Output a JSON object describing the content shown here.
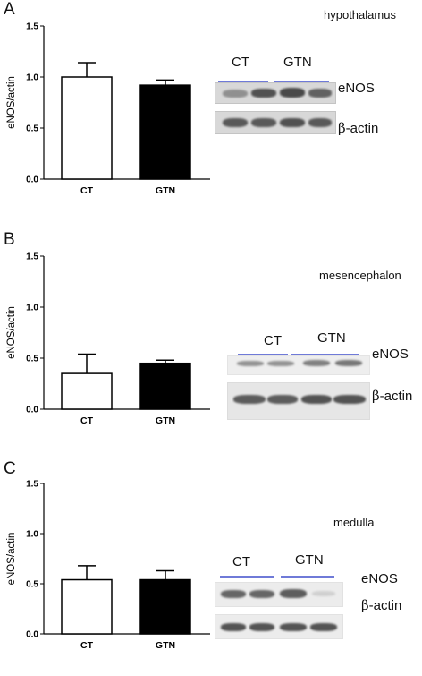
{
  "panels": [
    {
      "letter": "A",
      "region": "hypothalamus",
      "blot": {
        "groups": [
          "CT",
          "GTN"
        ],
        "proteins": {
          "enos": "eNOS",
          "actin_prefix": "β",
          "actin_suffix": "-actin"
        }
      }
    },
    {
      "letter": "B",
      "region": "mesencephalon",
      "blot": {
        "groups": [
          "CT",
          "GTN"
        ],
        "proteins": {
          "enos": "eNOS",
          "actin_prefix": "β",
          "actin_suffix": "-actin"
        }
      }
    },
    {
      "letter": "C",
      "region": "medulla",
      "blot": {
        "groups": [
          "CT",
          "GTN"
        ],
        "proteins": {
          "enos": "eNOS",
          "actin_prefix": "β",
          "actin_suffix": "-actin"
        }
      }
    }
  ],
  "chart_data": [
    {
      "type": "bar",
      "categories": [
        "CT",
        "GTN"
      ],
      "values": [
        1.0,
        0.92
      ],
      "errors": [
        0.14,
        0.05
      ],
      "colors": [
        "#ffffff",
        "#000000"
      ],
      "ylabel": "eNOS/actin",
      "ylim": [
        0,
        1.5
      ],
      "yticks": [
        "0.0",
        "0.5",
        "1.0",
        "1.5"
      ]
    },
    {
      "type": "bar",
      "categories": [
        "CT",
        "GTN"
      ],
      "values": [
        0.35,
        0.45
      ],
      "errors": [
        0.19,
        0.03
      ],
      "colors": [
        "#ffffff",
        "#000000"
      ],
      "ylabel": "eNOS/actin",
      "ylim": [
        0,
        1.5
      ],
      "yticks": [
        "0.0",
        "0.5",
        "1.0",
        "1.5"
      ]
    },
    {
      "type": "bar",
      "categories": [
        "CT",
        "GTN"
      ],
      "values": [
        0.54,
        0.54
      ],
      "errors": [
        0.14,
        0.09
      ],
      "colors": [
        "#ffffff",
        "#000000"
      ],
      "ylabel": "eNOS/actin",
      "ylim": [
        0,
        1.5
      ],
      "yticks": [
        "0.0",
        "0.5",
        "1.0",
        "1.5"
      ]
    }
  ]
}
